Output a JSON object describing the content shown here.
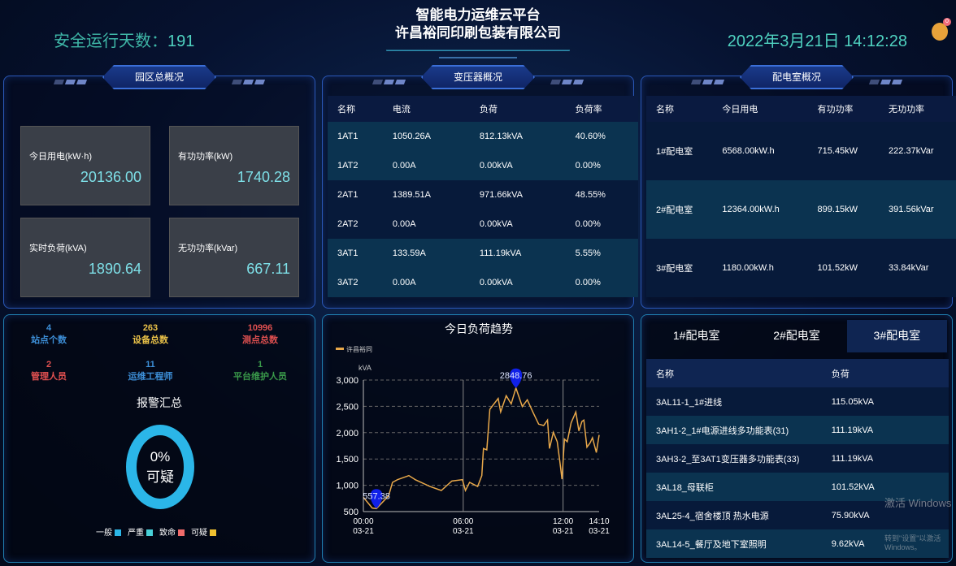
{
  "header": {
    "safe_days_label": "安全运行天数：",
    "safe_days": "191",
    "title": "智能电力运维云平台",
    "company": "许昌裕同印刷包装有限公司",
    "datetime": "2022年3月21日 14:12:28",
    "bell_icon": "bell-icon",
    "bell_badge": "0"
  },
  "park": {
    "title": "园区总概况",
    "cards": [
      {
        "label": "今日用电(kW·h)",
        "value": "20136.00"
      },
      {
        "label": "有功功率(kW)",
        "value": "1740.28"
      },
      {
        "label": "实时负荷(kVA)",
        "value": "1890.64"
      },
      {
        "label": "无功功率(kVar)",
        "value": "667.11"
      }
    ]
  },
  "transformer": {
    "title": "变压器概况",
    "headers": [
      "名称",
      "电流",
      "负荷",
      "负荷率"
    ],
    "rows": [
      [
        "1AT1",
        "1050.26A",
        "812.13kVA",
        "40.60%"
      ],
      [
        "1AT2",
        "0.00A",
        "0.00kVA",
        "0.00%"
      ],
      [
        "2AT1",
        "1389.51A",
        "971.66kVA",
        "48.55%"
      ],
      [
        "2AT2",
        "0.00A",
        "0.00kVA",
        "0.00%"
      ],
      [
        "3AT1",
        "133.59A",
        "111.19kVA",
        "5.55%"
      ],
      [
        "3AT2",
        "0.00A",
        "0.00kVA",
        "0.00%"
      ]
    ]
  },
  "rooms": {
    "title": "配电室概况",
    "headers": [
      "名称",
      "今日用电",
      "有功功率",
      "无功功率"
    ],
    "rows": [
      [
        "1#配电室",
        "6568.00kW.h",
        "715.45kW",
        "222.37kVar"
      ],
      [
        "2#配电室",
        "12364.00kW.h",
        "899.15kW",
        "391.56kVar"
      ],
      [
        "3#配电室",
        "1180.00kW.h",
        "101.52kW",
        "33.84kVar"
      ]
    ]
  },
  "stats": [
    {
      "value": "4",
      "label": "站点个数",
      "color": "#3d8fd8"
    },
    {
      "value": "263",
      "label": "设备总数",
      "color": "#e8c048"
    },
    {
      "value": "10996",
      "label": "测点总数",
      "color": "#e05050"
    },
    {
      "value": "2",
      "label": "管理人员",
      "color": "#e05050"
    },
    {
      "value": "11",
      "label": "运维工程师",
      "color": "#3d8fd8"
    },
    {
      "value": "1",
      "label": "平台维护人员",
      "color": "#3a9a4a"
    }
  ],
  "alarm": {
    "title": "报警汇总",
    "percent": "0%",
    "category": "可疑",
    "ring_color": "#2bb6e8",
    "legend": [
      {
        "label": "一般",
        "color": "#2bb6e8"
      },
      {
        "label": "严重",
        "color": "#48d0d8"
      },
      {
        "label": "致命",
        "color": "#f06b6b"
      },
      {
        "label": "可疑",
        "color": "#f0c030"
      }
    ]
  },
  "chart_data": {
    "type": "line",
    "title": "今日负荷趋势",
    "ylabel": "kVA",
    "ylim": [
      500,
      3000
    ],
    "yticks": [
      "500",
      "1,000",
      "1,500",
      "2,000",
      "2,500",
      "3,000"
    ],
    "xticks": [
      [
        "00:00",
        "03-21"
      ],
      [
        "06:00",
        "03-21"
      ],
      [
        "12:00",
        "03-21"
      ],
      [
        "14:10",
        "03-21"
      ]
    ],
    "series": [
      {
        "name": "许昌裕同",
        "color": "#e8a84a",
        "x": [
          "00:00",
          "00:32",
          "00:47",
          "01:31",
          "01:45",
          "02:03",
          "02:44",
          "03:07",
          "04:00",
          "04:41",
          "05:19",
          "05:57",
          "06:08",
          "06:23",
          "06:52",
          "07:07",
          "07:13",
          "07:25",
          "07:36",
          "08:06",
          "08:15",
          "08:35",
          "08:53",
          "09:10",
          "09:33",
          "09:51",
          "10:11",
          "10:32",
          "10:50",
          "11:04",
          "11:11",
          "11:25",
          "11:39",
          "11:48",
          "11:56",
          "12:05",
          "12:15",
          "12:29",
          "12:46",
          "12:57",
          "13:08",
          "13:15",
          "13:26",
          "13:37",
          "13:46",
          "14:00",
          "14:10"
        ],
        "y": [
          772,
          567,
          557.38,
          800,
          1056,
          1107,
          1184,
          1107,
          978,
          901,
          1081,
          1107,
          901,
          1056,
          978,
          1184,
          1699,
          1673,
          2444,
          2650,
          2393,
          2702,
          2547,
          2848.76,
          2496,
          2624,
          2393,
          2162,
          2136,
          2239,
          1699,
          2007,
          1827,
          1467,
          1117,
          1879,
          1827,
          2187,
          2393,
          2033,
          2213,
          2239,
          1724,
          1802,
          1904,
          1622,
          1956
        ]
      }
    ],
    "markers": [
      {
        "label": "557.38",
        "x": "00:47",
        "y": 557.38
      },
      {
        "label": "2848.76",
        "x": "09:10",
        "y": 2848.76
      }
    ]
  },
  "room_detail": {
    "tabs": [
      "1#配电室",
      "2#配电室",
      "3#配电室"
    ],
    "active": 2,
    "headers": [
      "名称",
      "负荷"
    ],
    "rows": [
      [
        "3AL11-1_1#进线",
        "115.05kVA"
      ],
      [
        "3AH1-2_1#电源进线多功能表(31)",
        "111.19kVA"
      ],
      [
        "3AH3-2_至3AT1变压器多功能表(33)",
        "111.19kVA"
      ],
      [
        "3AL18_母联柜",
        "101.52kVA"
      ],
      [
        "3AL25-4_宿舍楼顶 热水电源",
        "75.90kVA"
      ],
      [
        "3AL14-5_餐厅及地下室照明",
        "9.62kVA"
      ]
    ]
  },
  "watermark": {
    "line1": "激活 Windows",
    "line2": "转到\"设置\"以激活 Windows。"
  }
}
